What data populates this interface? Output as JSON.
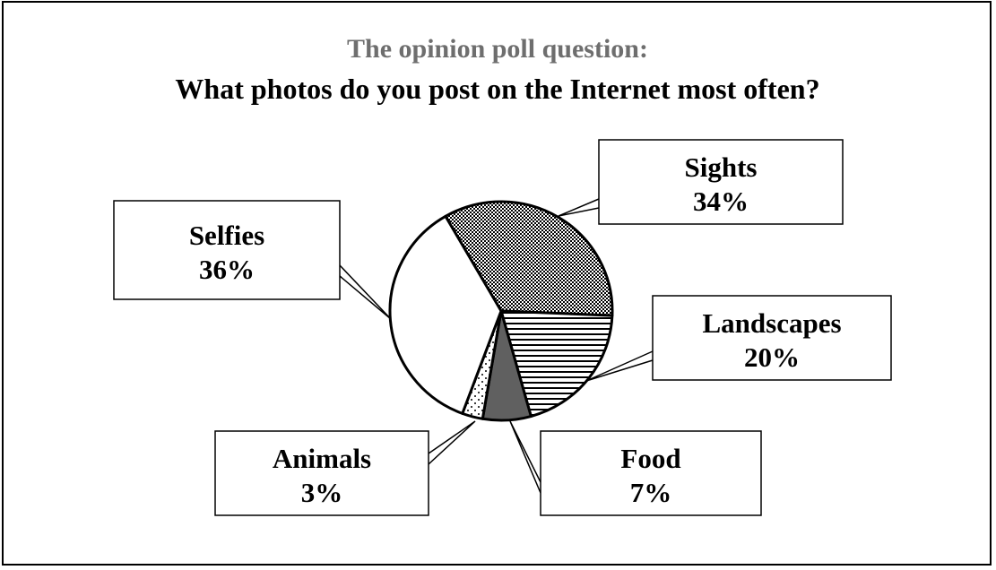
{
  "chart_data": {
    "type": "pie",
    "subtitle": "The opinion poll question:",
    "title": "What photos do you post on the Internet most often?",
    "slices": [
      {
        "label": "Sights",
        "value": 34,
        "value_label": "34%",
        "pattern": "checker"
      },
      {
        "label": "Landscapes",
        "value": 20,
        "value_label": "20%",
        "pattern": "horizontal-lines"
      },
      {
        "label": "Food",
        "value": 7,
        "value_label": "7%",
        "pattern": "solid-dark"
      },
      {
        "label": "Animals",
        "value": 3,
        "value_label": "3%",
        "pattern": "dots"
      },
      {
        "label": "Selfies",
        "value": 36,
        "value_label": "36%",
        "pattern": "none"
      }
    ],
    "legend": "callouts"
  },
  "colors": {
    "subtitle": "#6e6e6e",
    "title": "#000000",
    "food_fill": "#606060",
    "outline": "#000000",
    "background": "#ffffff"
  }
}
